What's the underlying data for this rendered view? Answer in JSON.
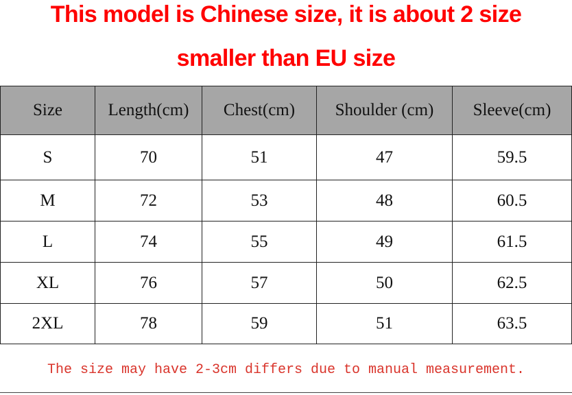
{
  "header": {
    "title_lines": [
      "This model is Chinese size, it is about 2 size",
      "smaller than EU size"
    ]
  },
  "table": {
    "columns": [
      "Size",
      "Length(cm)",
      "Chest(cm)",
      "Shoulder (cm)",
      "Sleeve(cm)"
    ],
    "rows": [
      [
        "S",
        "70",
        "51",
        "47",
        "59.5"
      ],
      [
        "M",
        "72",
        "53",
        "48",
        "60.5"
      ],
      [
        "L",
        "74",
        "55",
        "49",
        "61.5"
      ],
      [
        "XL",
        "76",
        "57",
        "50",
        "62.5"
      ],
      [
        "2XL",
        "78",
        "59",
        "51",
        "63.5"
      ]
    ]
  },
  "footer": {
    "note": "The size may have 2-3cm differs due to manual measurement."
  }
}
